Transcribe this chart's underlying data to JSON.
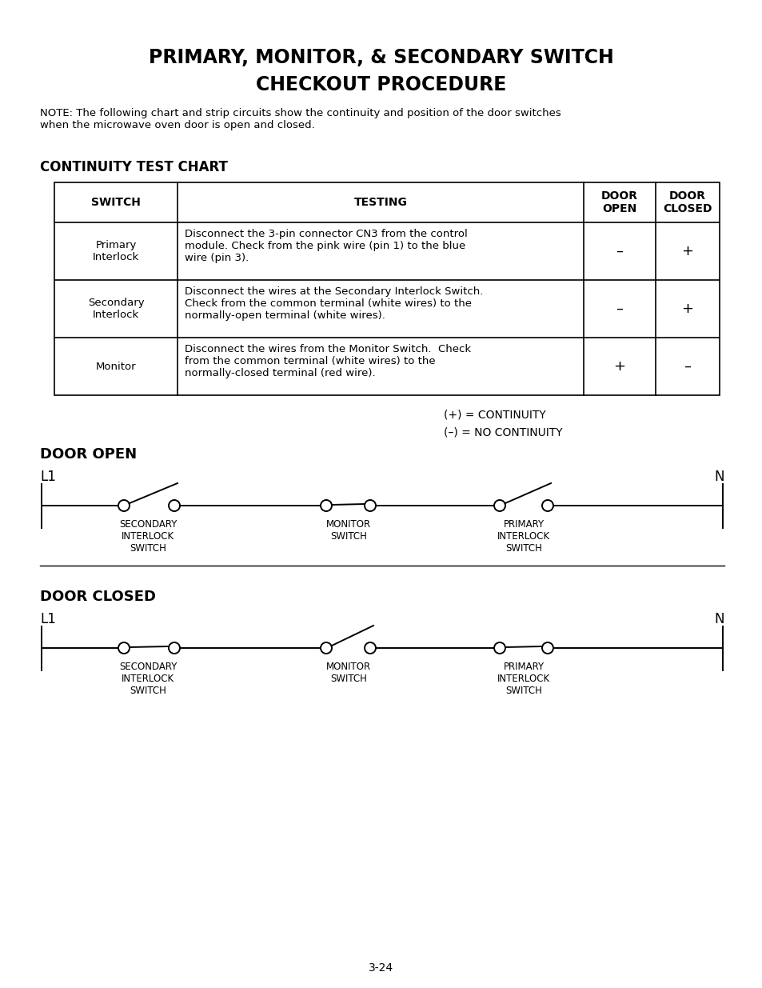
{
  "title_line1": "PRIMARY, MONITOR, & SECONDARY SWITCH",
  "title_line2": "CHECKOUT PROCEDURE",
  "note_text": "NOTE: The following chart and strip circuits show the continuity and position of the door switches\nwhen the microwave oven door is open and closed.",
  "section1_title": "CONTINUITY TEST CHART",
  "table_headers": [
    "SWITCH",
    "TESTING",
    "DOOR\nOPEN",
    "DOOR\nCLOSED"
  ],
  "table_rows": [
    [
      "Primary\nInterlock",
      "Disconnect the 3-pin connector CN3 from the control\nmodule. Check from the pink wire (pin 1) to the blue\nwire (pin 3).",
      "–",
      "+"
    ],
    [
      "Secondary\nInterlock",
      "Disconnect the wires at the Secondary Interlock Switch.\nCheck from the common terminal (white wires) to the\nnormally-open terminal (white wires).",
      "–",
      "+"
    ],
    [
      "Monitor",
      "Disconnect the wires from the Monitor Switch.  Check\nfrom the common terminal (white wires) to the\nnormally-closed terminal (red wire).",
      "+",
      "–"
    ]
  ],
  "legend_line1": "(+) = CONTINUITY",
  "legend_line2": "(–) = NO CONTINUITY",
  "door_open_title": "DOOR OPEN",
  "door_closed_title": "DOOR CLOSED",
  "page_number": "3-24",
  "bg_color": "#ffffff",
  "text_color": "#000000",
  "line_color": "#000000"
}
